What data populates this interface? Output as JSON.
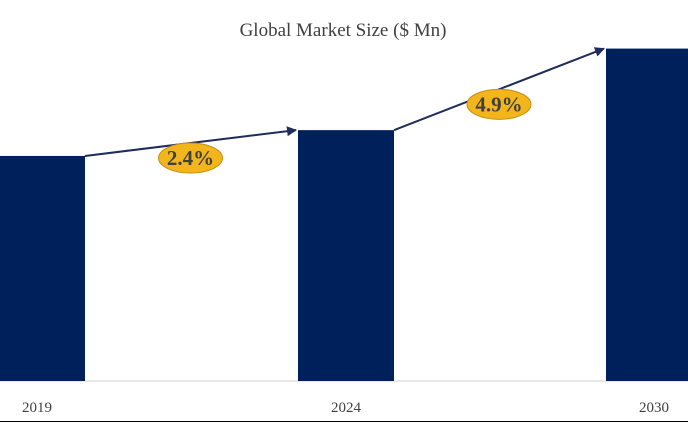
{
  "chart_data": {
    "type": "bar",
    "title": "Global Market Size ($ Mn)",
    "categories": [
      "2019",
      "2024",
      "2030"
    ],
    "values": [
      218,
      243,
      322
    ],
    "ylim": [
      0,
      340
    ],
    "xlabel": "",
    "ylabel": "",
    "grid": false,
    "legend": "none",
    "annotations": [
      {
        "from": "2019",
        "to": "2024",
        "label": "2.4%"
      },
      {
        "from": "2024",
        "to": "2030",
        "label": "4.9%"
      }
    ],
    "colors": {
      "bar": "#00205b",
      "arrow": "#1f2d5c",
      "badge": "#f2b51c",
      "badge_border": "#c58f0f",
      "axis": "#d0d0d0",
      "text": "#404040"
    }
  }
}
